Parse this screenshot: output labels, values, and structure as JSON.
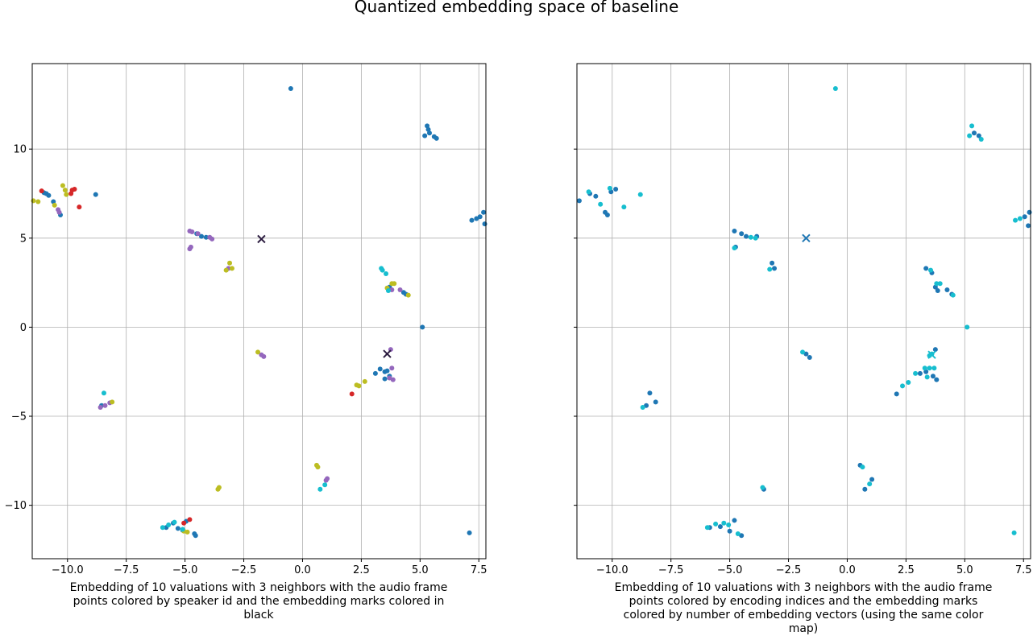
{
  "figure": {
    "title": "Quantized embedding space of baseline"
  },
  "chart_data": [
    {
      "type": "scatter",
      "title": "",
      "caption": "Embedding of 10 valuations with 3 neighbors with the audio frame points colored by speaker id and the embedding marks colored in black",
      "xlim": [
        -11.5,
        7.8
      ],
      "ylim": [
        -13.0,
        14.8
      ],
      "xticks": [
        -10.0,
        -7.5,
        -5.0,
        -2.5,
        0.0,
        2.5,
        5.0,
        7.5
      ],
      "xtick_labels": [
        "−10.0",
        "−7.5",
        "−5.0",
        "−2.5",
        "0.0",
        "2.5",
        "5.0",
        "7.5"
      ],
      "yticks": [
        -10,
        -5,
        0,
        5,
        10
      ],
      "ytick_labels": [
        "−10",
        "−5",
        "0",
        "5",
        "10"
      ],
      "grid": true,
      "colors": {
        "blue": "#1f77b4",
        "red": "#d62728",
        "purple": "#9467bd",
        "olive": "#bcbd22",
        "cyan": "#17becf",
        "mark": "#2b1b3f"
      },
      "series": [
        {
          "color": "blue",
          "points": [
            [
              -0.5,
              13.4
            ],
            [
              5.3,
              11.3
            ],
            [
              5.35,
              11.1
            ],
            [
              5.4,
              10.9
            ],
            [
              5.2,
              10.75
            ],
            [
              5.6,
              10.7
            ],
            [
              5.7,
              10.6
            ],
            [
              -11.0,
              7.55
            ],
            [
              -10.9,
              7.5
            ],
            [
              -10.8,
              7.4
            ],
            [
              -10.6,
              7.05
            ],
            [
              -10.3,
              6.3
            ],
            [
              -8.8,
              7.45
            ],
            [
              7.2,
              6.0
            ],
            [
              7.4,
              6.1
            ],
            [
              7.55,
              6.2
            ],
            [
              7.7,
              6.45
            ],
            [
              7.75,
              5.8
            ],
            [
              -4.5,
              5.25
            ],
            [
              -4.3,
              5.1
            ],
            [
              -4.1,
              5.05
            ],
            [
              3.7,
              2.25
            ],
            [
              4.3,
              1.95
            ],
            [
              4.4,
              1.85
            ],
            [
              5.1,
              0.0
            ],
            [
              3.1,
              -2.6
            ],
            [
              3.3,
              -2.35
            ],
            [
              3.5,
              -2.5
            ],
            [
              3.6,
              -2.45
            ],
            [
              3.5,
              -2.9
            ],
            [
              3.7,
              -2.75
            ],
            [
              -8.55,
              -4.4
            ],
            [
              -5.8,
              -11.25
            ],
            [
              -5.5,
              -11.0
            ],
            [
              -5.3,
              -11.3
            ],
            [
              -5.1,
              -11.4
            ],
            [
              -4.95,
              -10.9
            ],
            [
              -4.6,
              -11.6
            ],
            [
              -4.55,
              -11.7
            ],
            [
              7.1,
              -11.55
            ]
          ]
        },
        {
          "color": "red",
          "points": [
            [
              -11.1,
              7.65
            ],
            [
              -9.85,
              7.5
            ],
            [
              -9.8,
              7.7
            ],
            [
              -9.7,
              7.75
            ],
            [
              -9.5,
              6.75
            ],
            [
              -4.8,
              -10.8
            ],
            [
              -5.05,
              -11.0
            ],
            [
              2.1,
              -3.75
            ]
          ]
        },
        {
          "color": "purple",
          "points": [
            [
              -10.4,
              6.6
            ],
            [
              -10.35,
              6.45
            ],
            [
              -4.8,
              5.4
            ],
            [
              -4.7,
              5.35
            ],
            [
              -4.45,
              5.25
            ],
            [
              -3.95,
              5.05
            ],
            [
              -3.85,
              4.95
            ],
            [
              -4.8,
              4.4
            ],
            [
              -4.75,
              4.5
            ],
            [
              -3.15,
              3.3
            ],
            [
              3.8,
              2.1
            ],
            [
              4.15,
              2.1
            ],
            [
              -1.75,
              -1.55
            ],
            [
              -1.65,
              -1.65
            ],
            [
              3.75,
              -1.25
            ],
            [
              3.8,
              -2.3
            ],
            [
              3.7,
              -2.85
            ],
            [
              3.85,
              -2.95
            ],
            [
              -8.6,
              -4.5
            ],
            [
              -8.4,
              -4.4
            ],
            [
              -8.2,
              -4.25
            ],
            [
              1.05,
              -8.5
            ],
            [
              1.0,
              -8.6
            ]
          ]
        },
        {
          "color": "olive",
          "points": [
            [
              -11.45,
              7.1
            ],
            [
              -11.25,
              7.05
            ],
            [
              -10.2,
              7.95
            ],
            [
              -10.1,
              7.7
            ],
            [
              -10.05,
              7.45
            ],
            [
              -10.55,
              6.85
            ],
            [
              -3.1,
              3.6
            ],
            [
              -3.0,
              3.3
            ],
            [
              -3.25,
              3.2
            ],
            [
              3.8,
              2.45
            ],
            [
              3.9,
              2.45
            ],
            [
              3.6,
              2.2
            ],
            [
              4.5,
              1.8
            ],
            [
              -1.9,
              -1.4
            ],
            [
              2.3,
              -3.25
            ],
            [
              2.4,
              -3.3
            ],
            [
              2.65,
              -3.05
            ],
            [
              -8.1,
              -4.2
            ],
            [
              -3.6,
              -9.1
            ],
            [
              -3.55,
              -9.0
            ],
            [
              0.6,
              -7.75
            ],
            [
              0.65,
              -7.85
            ],
            [
              -4.9,
              -11.5
            ],
            [
              -5.05,
              -11.45
            ]
          ]
        },
        {
          "color": "cyan",
          "points": [
            [
              3.35,
              3.3
            ],
            [
              3.4,
              3.2
            ],
            [
              3.55,
              3.0
            ],
            [
              3.65,
              2.05
            ],
            [
              -8.45,
              -3.7
            ],
            [
              0.75,
              -9.1
            ],
            [
              0.95,
              -8.85
            ],
            [
              -5.95,
              -11.25
            ],
            [
              -5.7,
              -11.1
            ],
            [
              -5.45,
              -10.95
            ],
            [
              -5.1,
              -11.35
            ]
          ]
        }
      ],
      "marks": [
        [
          -1.75,
          4.95
        ],
        [
          3.6,
          -1.5
        ]
      ]
    },
    {
      "type": "scatter",
      "title": "",
      "caption": "Embedding of 10 valuations with 3 neighbors with the audio frame points colored by encoding indices and the embedding marks colored by number of embedding vectors (using the same color map)",
      "xlim": [
        -11.5,
        7.8
      ],
      "ylim": [
        -13.0,
        14.8
      ],
      "xticks": [
        -10.0,
        -7.5,
        -5.0,
        -2.5,
        0.0,
        2.5,
        5.0,
        7.5
      ],
      "xtick_labels": [
        "−10.0",
        "−7.5",
        "−5.0",
        "−2.5",
        "0.0",
        "2.5",
        "5.0",
        "7.5"
      ],
      "yticks": [
        -10,
        -5,
        0,
        5,
        10
      ],
      "ytick_labels": [
        "",
        "",
        "",
        "",
        ""
      ],
      "grid": true,
      "colors": {
        "blue": "#1f77b4",
        "cyan": "#17becf",
        "mark_a": "#1f77b4",
        "mark_b": "#17becf"
      },
      "series": [
        {
          "color": "blue",
          "points": [
            [
              5.4,
              10.9
            ],
            [
              5.6,
              10.75
            ],
            [
              -11.4,
              7.1
            ],
            [
              -10.95,
              7.5
            ],
            [
              -10.7,
              7.35
            ],
            [
              -10.05,
              7.6
            ],
            [
              -9.85,
              7.75
            ],
            [
              -10.2,
              6.3
            ],
            [
              -10.3,
              6.45
            ],
            [
              7.55,
              6.2
            ],
            [
              7.75,
              6.45
            ],
            [
              7.7,
              5.7
            ],
            [
              -4.8,
              5.4
            ],
            [
              -4.5,
              5.25
            ],
            [
              -4.3,
              5.1
            ],
            [
              -3.85,
              5.1
            ],
            [
              -4.75,
              4.5
            ],
            [
              -3.2,
              3.6
            ],
            [
              -3.1,
              3.3
            ],
            [
              3.35,
              3.3
            ],
            [
              3.6,
              3.05
            ],
            [
              3.75,
              2.25
            ],
            [
              3.85,
              2.05
            ],
            [
              4.25,
              2.1
            ],
            [
              4.45,
              1.85
            ],
            [
              -1.75,
              -1.5
            ],
            [
              -1.6,
              -1.7
            ],
            [
              3.75,
              -1.25
            ],
            [
              3.1,
              -2.6
            ],
            [
              3.35,
              -2.5
            ],
            [
              3.65,
              -2.75
            ],
            [
              3.8,
              -2.95
            ],
            [
              2.1,
              -3.75
            ],
            [
              -8.4,
              -3.7
            ],
            [
              -8.15,
              -4.2
            ],
            [
              -8.55,
              -4.4
            ],
            [
              -3.55,
              -9.1
            ],
            [
              0.55,
              -7.75
            ],
            [
              1.05,
              -8.55
            ],
            [
              0.75,
              -9.1
            ],
            [
              -5.85,
              -11.25
            ],
            [
              -5.4,
              -11.2
            ],
            [
              -5.0,
              -11.45
            ],
            [
              -4.8,
              -10.85
            ],
            [
              -4.5,
              -11.7
            ]
          ]
        },
        {
          "color": "cyan",
          "points": [
            [
              -0.5,
              13.4
            ],
            [
              5.3,
              11.3
            ],
            [
              5.2,
              10.75
            ],
            [
              5.7,
              10.55
            ],
            [
              -11.0,
              7.6
            ],
            [
              -10.5,
              6.9
            ],
            [
              -10.1,
              7.8
            ],
            [
              -9.5,
              6.75
            ],
            [
              -8.8,
              7.45
            ],
            [
              7.15,
              6.0
            ],
            [
              7.35,
              6.1
            ],
            [
              -3.9,
              5.0
            ],
            [
              -4.1,
              5.05
            ],
            [
              -4.8,
              4.45
            ],
            [
              -3.3,
              3.25
            ],
            [
              3.55,
              3.2
            ],
            [
              3.8,
              2.45
            ],
            [
              3.95,
              2.45
            ],
            [
              4.5,
              1.8
            ],
            [
              5.1,
              0.0
            ],
            [
              -1.9,
              -1.4
            ],
            [
              3.5,
              -1.6
            ],
            [
              3.6,
              -1.5
            ],
            [
              3.3,
              -2.3
            ],
            [
              3.5,
              -2.3
            ],
            [
              3.7,
              -2.3
            ],
            [
              2.9,
              -2.6
            ],
            [
              3.4,
              -2.8
            ],
            [
              2.35,
              -3.3
            ],
            [
              2.6,
              -3.1
            ],
            [
              -8.7,
              -4.5
            ],
            [
              -3.6,
              -9.0
            ],
            [
              0.65,
              -7.85
            ],
            [
              0.95,
              -8.8
            ],
            [
              -5.95,
              -11.25
            ],
            [
              -5.6,
              -11.05
            ],
            [
              -5.25,
              -11.0
            ],
            [
              -5.05,
              -11.1
            ],
            [
              -4.65,
              -11.6
            ],
            [
              7.1,
              -11.55
            ]
          ]
        }
      ],
      "marks": [
        [
          -1.75,
          5.0,
          "mark_a"
        ],
        [
          3.6,
          -1.55,
          "mark_b"
        ]
      ]
    }
  ]
}
